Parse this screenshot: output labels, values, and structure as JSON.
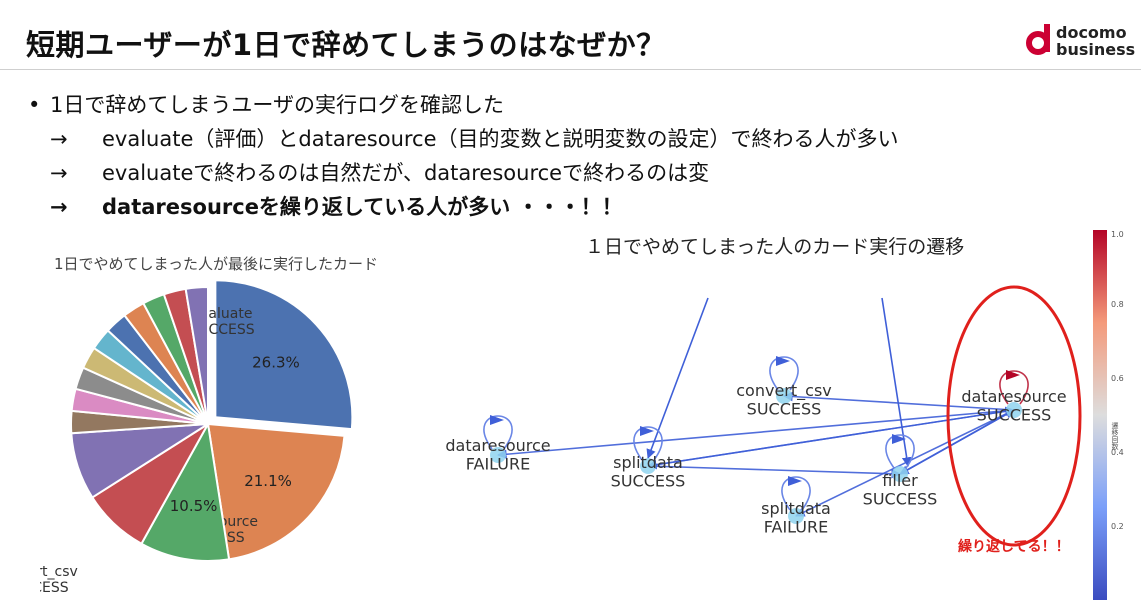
{
  "slide": {
    "title": "短期ユーザーが1日で辞めてしまうのはなぜか？",
    "logo": {
      "line1": "docomo",
      "line2": "business"
    },
    "bullets": [
      {
        "marker": "•",
        "text": "1日で辞めてしまうユーザの実行ログを確認した"
      },
      {
        "marker": "→",
        "text": "evaluate（評価）とdataresource（目的変数と説明変数の設定）で終わる人が多い"
      },
      {
        "marker": "→",
        "text": "evaluateで終わるのは自然だが、dataresourceで終わるのは変"
      },
      {
        "marker": "→",
        "text": "dataresourceを繰り返している人が多い ・・・！！"
      }
    ],
    "pie_title": "1日でやめてしまった人が最後に実行したカード",
    "graph_title": "１日でやめてしまった人のカード実行の遷移",
    "annotation": "繰り返してる！！",
    "colorbar_label": "遷移回数"
  },
  "chart_data": [
    {
      "type": "pie",
      "title": "1日でやめてしまった人が最後に実行したカード",
      "slices": [
        {
          "label": "evaluate\nSUCCESS",
          "value": 26.3,
          "display": "26.3%",
          "color": "#4c72b0",
          "exploded": true
        },
        {
          "label": "dataresource\nSUCCESS",
          "value": 21.1,
          "display": "21.1%",
          "color": "#dd8452"
        },
        {
          "label": "convert_csv\nSUCCESS",
          "value": 10.5,
          "display": "10.5%",
          "color": "#55a868"
        },
        {
          "label": "",
          "value": 7.9,
          "display": "",
          "color": "#c44e52"
        },
        {
          "label": "",
          "value": 7.9,
          "display": "",
          "color": "#8172b3"
        },
        {
          "label": "",
          "value": 2.6,
          "display": "",
          "color": "#937860"
        },
        {
          "label": "",
          "value": 2.6,
          "display": "",
          "color": "#da8bc3"
        },
        {
          "label": "",
          "value": 2.6,
          "display": "",
          "color": "#8c8c8c"
        },
        {
          "label": "",
          "value": 2.6,
          "display": "",
          "color": "#ccb974"
        },
        {
          "label": "",
          "value": 2.6,
          "display": "",
          "color": "#64b5cd"
        },
        {
          "label": "",
          "value": 2.6,
          "display": "",
          "color": "#4c72b0"
        },
        {
          "label": "",
          "value": 2.6,
          "display": "",
          "color": "#dd8452"
        },
        {
          "label": "",
          "value": 2.6,
          "display": "",
          "color": "#55a868"
        },
        {
          "label": "",
          "value": 2.6,
          "display": "",
          "color": "#c44e52"
        },
        {
          "label": "",
          "value": 2.6,
          "display": "",
          "color": "#8172b3"
        }
      ]
    },
    {
      "type": "network",
      "title": "１日でやめてしまった人のカード実行の遷移",
      "nodes": [
        {
          "id": "dr_s",
          "label": "dataresource\nSUCCESS",
          "self_loop": 1.0
        },
        {
          "id": "conv",
          "label": "convert_csv\nSUCCESS",
          "self_loop": 0.3
        },
        {
          "id": "dr_f",
          "label": "dataresource\nFAILURE",
          "self_loop": 0.3
        },
        {
          "id": "split_s",
          "label": "splitdata\nSUCCESS",
          "self_loop": 0.3
        },
        {
          "id": "split_f",
          "label": "splitdata\nFAILURE",
          "self_loop": 0.3
        },
        {
          "id": "filler",
          "label": "filler\nSUCCESS",
          "self_loop": 0.3
        }
      ],
      "edges": [
        {
          "from": "dr_s",
          "to": "dr_f",
          "weight": 0.1
        },
        {
          "from": "dr_s",
          "to": "split_s",
          "weight": 0.1
        },
        {
          "from": "split_s",
          "to": "dr_s",
          "weight": 0.1
        },
        {
          "from": "dr_s",
          "to": "conv",
          "weight": 0.1
        },
        {
          "from": "dr_s",
          "to": "filler",
          "weight": 0.1
        },
        {
          "from": "dr_s",
          "to": "split_f",
          "weight": 0.1
        },
        {
          "from": "split_s",
          "to": "filler",
          "weight": 0.1
        },
        {
          "from": "filler",
          "to": "dr_s",
          "weight": 0.1
        }
      ],
      "colorbar": {
        "min": 0.0,
        "max": 1.0,
        "ticks": [
          "0.2",
          "0.4",
          "0.6",
          "0.8",
          "1.0"
        ],
        "label": "遷移回数"
      }
    }
  ]
}
